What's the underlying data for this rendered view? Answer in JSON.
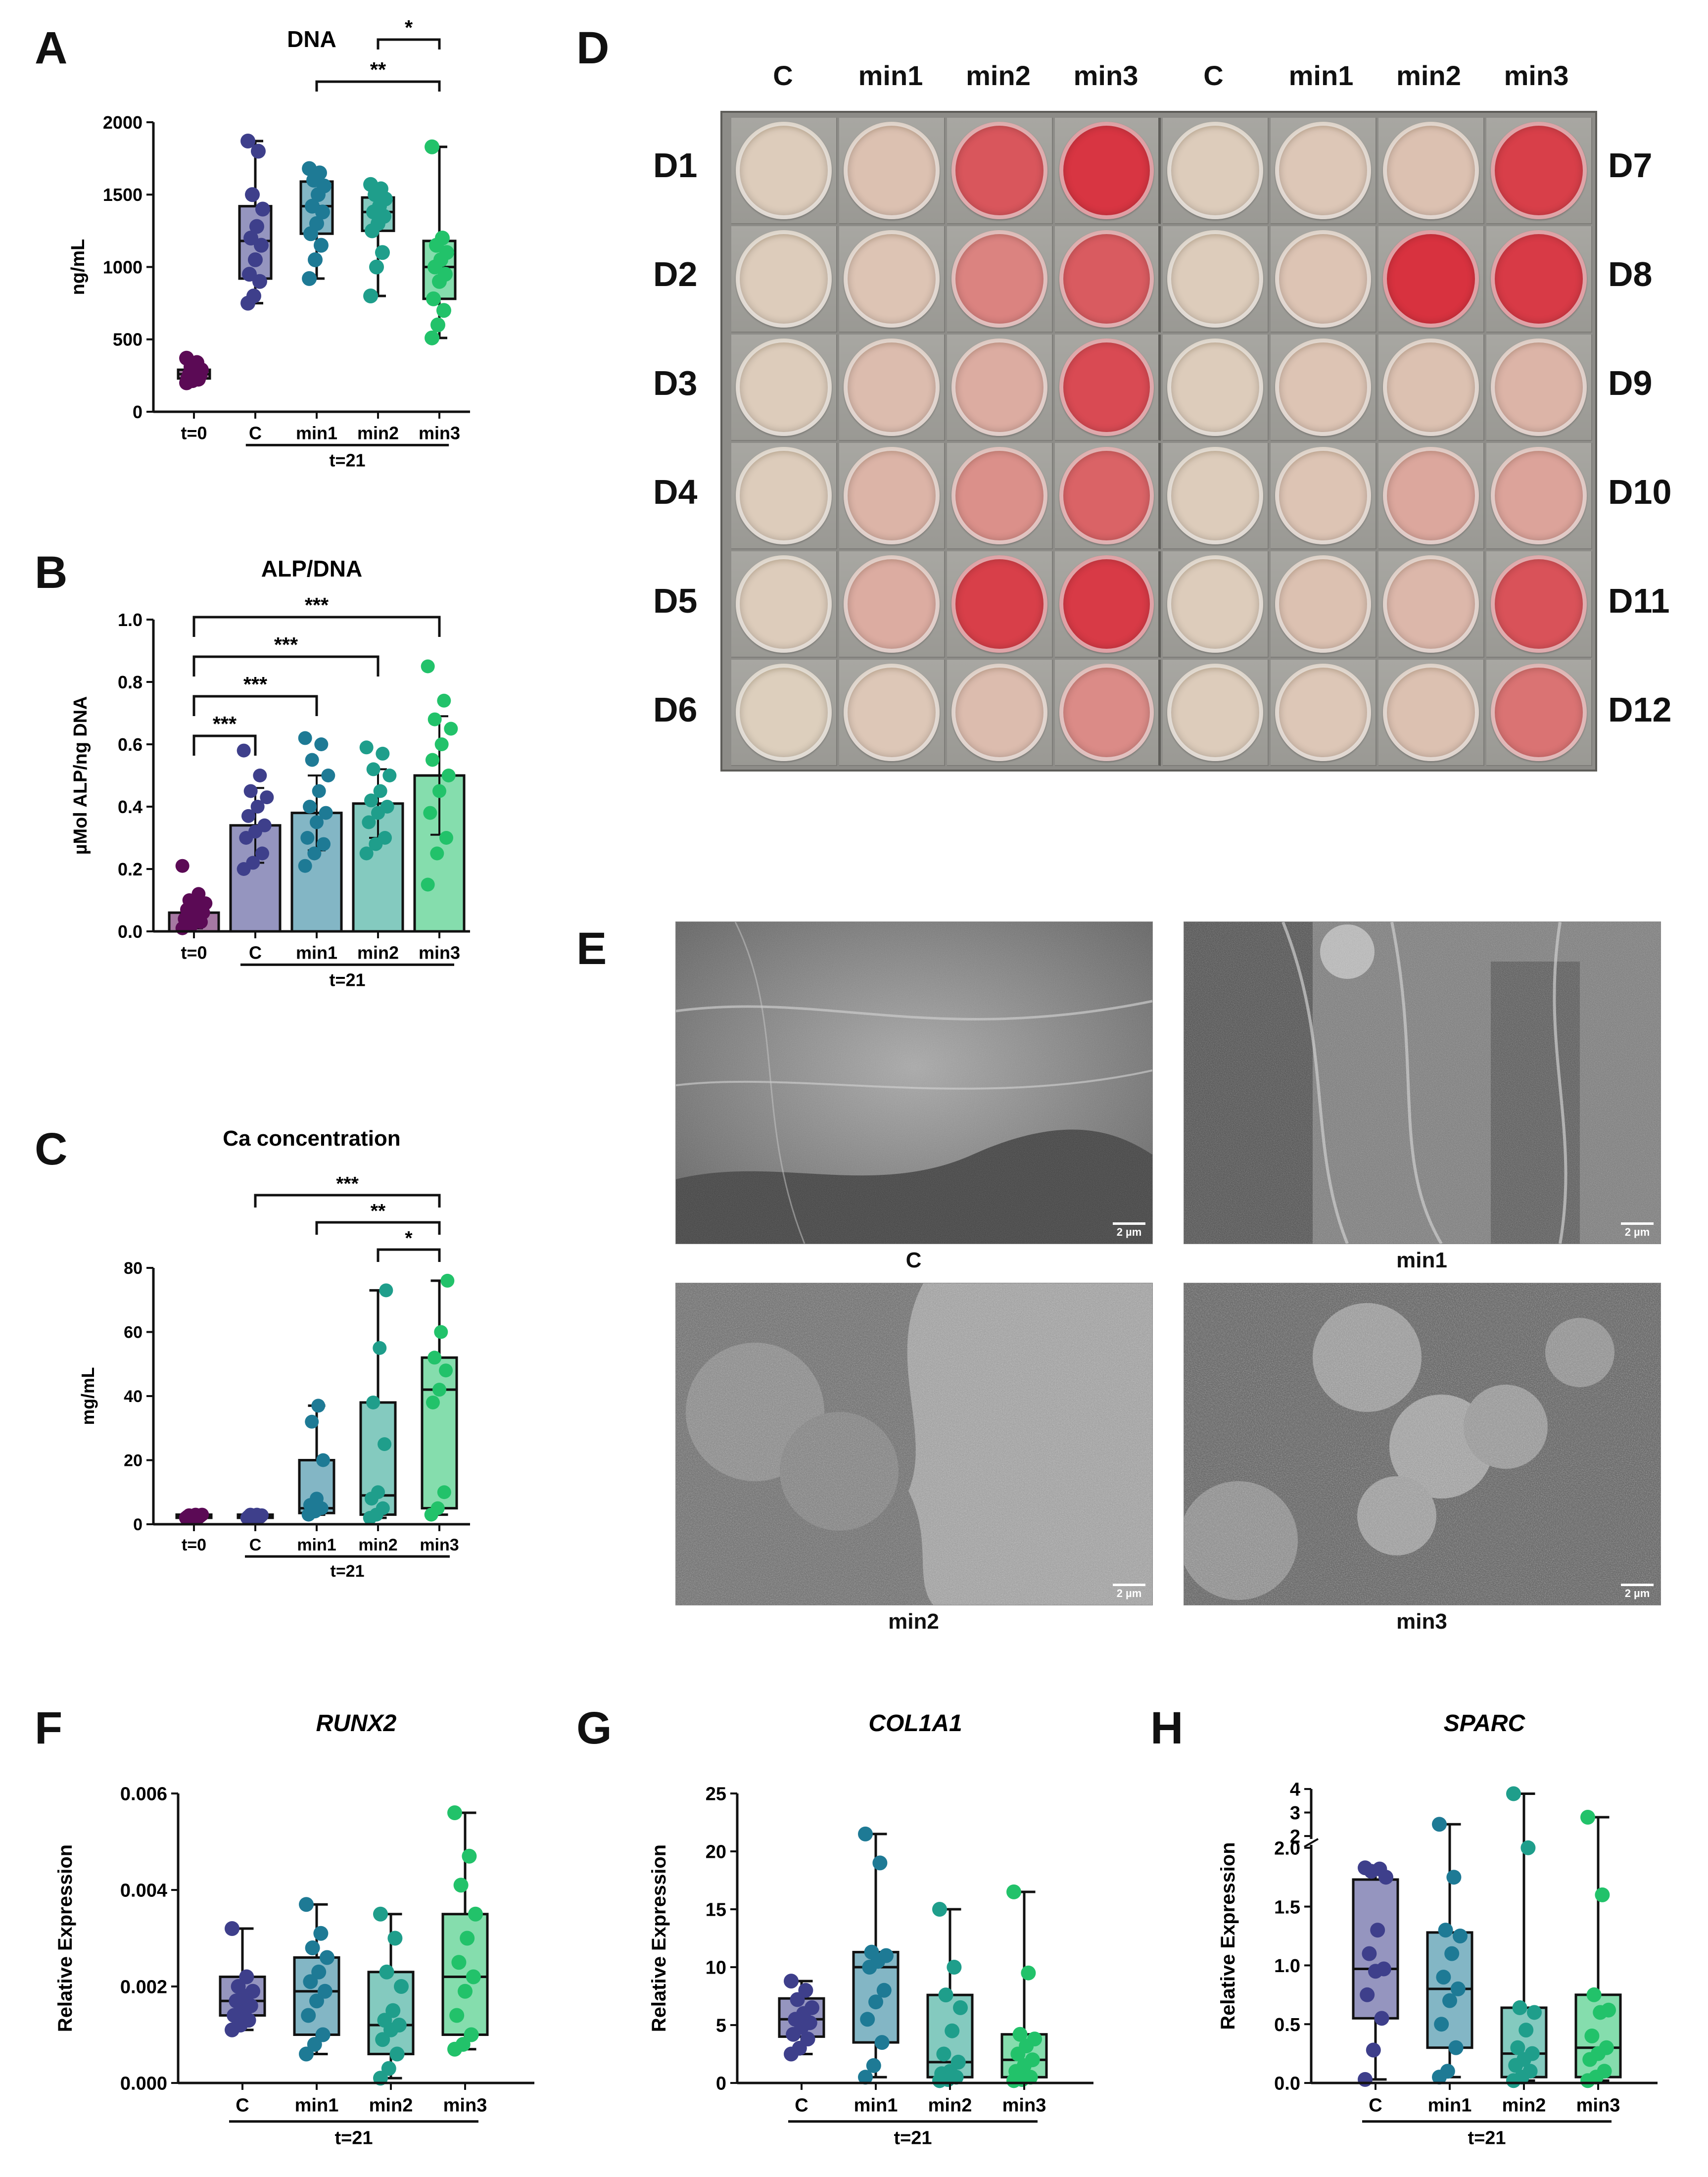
{
  "panel_letters": {
    "A": "A",
    "B": "B",
    "C": "C",
    "D": "D",
    "E": "E",
    "F": "F",
    "G": "G",
    "H": "H"
  },
  "colors": {
    "t0": "#5b0a55",
    "C": "#3e3f8b",
    "min1": "#1e7a95",
    "min2": "#1f9e8b",
    "min3": "#22c26a",
    "plate_white": "#ddd4c1",
    "plate_red": "#d8323f"
  },
  "plate": {
    "column_labels": [
      "C",
      "min1",
      "min2",
      "min3",
      "C",
      "min1",
      "min2",
      "min3"
    ],
    "left_labels": [
      "D1",
      "D2",
      "D3",
      "D4",
      "D5",
      "D6"
    ],
    "right_labels": [
      "D7",
      "D8",
      "D9",
      "D10",
      "D11",
      "D12"
    ],
    "well_stain_levels": [
      [
        0.05,
        0.12,
        0.78,
        0.98,
        0.05,
        0.08,
        0.12,
        0.92
      ],
      [
        0.05,
        0.1,
        0.5,
        0.75,
        0.05,
        0.1,
        1.0,
        0.95
      ],
      [
        0.05,
        0.15,
        0.25,
        0.85,
        0.05,
        0.1,
        0.12,
        0.2
      ],
      [
        0.05,
        0.2,
        0.42,
        0.7,
        0.05,
        0.1,
        0.28,
        0.3
      ],
      [
        0.05,
        0.25,
        0.92,
        0.95,
        0.05,
        0.12,
        0.18,
        0.8
      ],
      [
        0.03,
        0.08,
        0.15,
        0.45,
        0.05,
        0.08,
        0.12,
        0.6
      ]
    ]
  },
  "sem": {
    "images": [
      {
        "label": "C",
        "scale": "2 µm"
      },
      {
        "label": "min1",
        "scale": "2 µm"
      },
      {
        "label": "min2",
        "scale": "2 µm"
      },
      {
        "label": "min3",
        "scale": "2 µm"
      }
    ]
  },
  "chart_data": [
    {
      "id": "A",
      "type": "box",
      "title": "DNA",
      "ylabel": "ng/mL",
      "ylim": [
        0,
        2000
      ],
      "yticks": [
        "0",
        "500",
        "1000",
        "1500",
        "2000"
      ],
      "categories": [
        "t=0",
        "C",
        "min1",
        "min2",
        "min3"
      ],
      "group_label": "t=21",
      "series": [
        {
          "name": "t=0",
          "min": 200,
          "q1": 230,
          "median": 260,
          "q3": 290,
          "max": 370,
          "points": [
            200,
            215,
            225,
            235,
            245,
            250,
            260,
            270,
            290,
            310,
            340,
            370
          ]
        },
        {
          "name": "C",
          "min": 750,
          "q1": 920,
          "median": 1180,
          "q3": 1420,
          "max": 1870,
          "points": [
            750,
            800,
            900,
            950,
            1050,
            1150,
            1200,
            1280,
            1400,
            1500,
            1800,
            1870
          ]
        },
        {
          "name": "min1",
          "min": 920,
          "q1": 1230,
          "median": 1420,
          "q3": 1590,
          "max": 1680,
          "points": [
            920,
            1050,
            1150,
            1230,
            1300,
            1380,
            1420,
            1500,
            1560,
            1600,
            1650,
            1680
          ]
        },
        {
          "name": "min2",
          "min": 800,
          "q1": 1250,
          "median": 1380,
          "q3": 1480,
          "max": 1570,
          "points": [
            800,
            1000,
            1100,
            1250,
            1300,
            1350,
            1380,
            1420,
            1470,
            1500,
            1540,
            1570
          ]
        },
        {
          "name": "min3",
          "min": 510,
          "q1": 780,
          "median": 1000,
          "q3": 1180,
          "max": 1830,
          "points": [
            510,
            600,
            700,
            780,
            900,
            950,
            1000,
            1050,
            1100,
            1150,
            1200,
            1830
          ]
        }
      ],
      "significance": [
        {
          "from": "min1",
          "to": "min3",
          "label": "**"
        },
        {
          "from": "min2",
          "to": "min3",
          "label": "*"
        }
      ]
    },
    {
      "id": "B",
      "type": "bar",
      "title": "ALP/DNA",
      "ylabel": "µMol ALP/ng DNA",
      "ylim": [
        0,
        1.0
      ],
      "yticks": [
        "0.0",
        "0.2",
        "0.4",
        "0.6",
        "0.8",
        "1.0"
      ],
      "categories": [
        "t=0",
        "C",
        "min1",
        "min2",
        "min3"
      ],
      "group_label": "t=21",
      "series": [
        {
          "name": "t=0",
          "mean": 0.06,
          "sd": 0.05,
          "points": [
            0.01,
            0.02,
            0.03,
            0.04,
            0.05,
            0.06,
            0.07,
            0.08,
            0.09,
            0.1,
            0.12,
            0.21
          ]
        },
        {
          "name": "C",
          "mean": 0.34,
          "sd": 0.12,
          "points": [
            0.2,
            0.22,
            0.25,
            0.3,
            0.32,
            0.34,
            0.37,
            0.4,
            0.43,
            0.45,
            0.5,
            0.58
          ]
        },
        {
          "name": "min1",
          "mean": 0.38,
          "sd": 0.12,
          "points": [
            0.21,
            0.25,
            0.28,
            0.3,
            0.35,
            0.38,
            0.4,
            0.45,
            0.5,
            0.55,
            0.6,
            0.62
          ]
        },
        {
          "name": "min2",
          "mean": 0.41,
          "sd": 0.11,
          "points": [
            0.25,
            0.28,
            0.3,
            0.35,
            0.38,
            0.4,
            0.42,
            0.45,
            0.5,
            0.52,
            0.57,
            0.59
          ]
        },
        {
          "name": "min3",
          "mean": 0.5,
          "sd": 0.19,
          "points": [
            0.15,
            0.25,
            0.3,
            0.38,
            0.45,
            0.5,
            0.55,
            0.6,
            0.65,
            0.68,
            0.74,
            0.85
          ]
        }
      ],
      "significance": [
        {
          "from": "t=0",
          "to": "C",
          "label": "***"
        },
        {
          "from": "t=0",
          "to": "min1",
          "label": "***"
        },
        {
          "from": "t=0",
          "to": "min2",
          "label": "***"
        },
        {
          "from": "t=0",
          "to": "min3",
          "label": "***"
        }
      ]
    },
    {
      "id": "C",
      "type": "box",
      "title": "Ca concentration",
      "ylabel": "mg/mL",
      "ylim": [
        0,
        80
      ],
      "yticks": [
        "0",
        "20",
        "40",
        "60",
        "80"
      ],
      "categories": [
        "t=0",
        "C",
        "min1",
        "min2",
        "min3"
      ],
      "group_label": "t=21",
      "series": [
        {
          "name": "t=0",
          "min": 2,
          "q1": 2,
          "median": 2.5,
          "q3": 3,
          "max": 3,
          "points": [
            2,
            2,
            2.2,
            2.4,
            2.5,
            2.6,
            2.8,
            3,
            3
          ]
        },
        {
          "name": "C",
          "min": 2,
          "q1": 2,
          "median": 2.5,
          "q3": 3,
          "max": 3,
          "points": [
            2,
            2.1,
            2.3,
            2.5,
            2.6,
            2.8,
            3,
            3
          ]
        },
        {
          "name": "min1",
          "min": 3,
          "q1": 3.5,
          "median": 5,
          "q3": 20,
          "max": 37,
          "points": [
            3,
            4,
            5,
            6,
            8,
            20,
            32,
            37
          ]
        },
        {
          "name": "min2",
          "min": 2,
          "q1": 3,
          "median": 9,
          "q3": 38,
          "max": 73,
          "points": [
            2,
            3,
            5,
            8,
            10,
            25,
            38,
            55,
            73
          ]
        },
        {
          "name": "min3",
          "min": 3,
          "q1": 5,
          "median": 42,
          "q3": 52,
          "max": 76,
          "points": [
            3,
            5,
            10,
            38,
            42,
            48,
            52,
            60,
            76
          ]
        }
      ],
      "significance": [
        {
          "from": "C",
          "to": "min3",
          "label": "***"
        },
        {
          "from": "min1",
          "to": "min3",
          "label": "**"
        },
        {
          "from": "min2",
          "to": "min3",
          "label": "*"
        }
      ]
    },
    {
      "id": "F",
      "type": "box",
      "title": "RUNX2",
      "ylabel": "Relative Expression",
      "ylim": [
        0,
        0.006
      ],
      "yticks": [
        "0.000",
        "0.002",
        "0.004",
        "0.006"
      ],
      "categories": [
        "C",
        "min1",
        "min2",
        "min3"
      ],
      "group_label": "t=21",
      "series": [
        {
          "name": "C",
          "min": 0.0011,
          "q1": 0.0014,
          "median": 0.0017,
          "q3": 0.0022,
          "max": 0.0032,
          "points": [
            0.0011,
            0.0012,
            0.0013,
            0.0014,
            0.0015,
            0.0016,
            0.0017,
            0.0018,
            0.0019,
            0.002,
            0.0022,
            0.0032
          ]
        },
        {
          "name": "min1",
          "min": 0.0006,
          "q1": 0.001,
          "median": 0.0019,
          "q3": 0.0026,
          "max": 0.0037,
          "points": [
            0.0006,
            0.0008,
            0.001,
            0.0014,
            0.0017,
            0.0019,
            0.0021,
            0.0023,
            0.0026,
            0.0028,
            0.0031,
            0.0037
          ]
        },
        {
          "name": "min2",
          "min": 0.0001,
          "q1": 0.0006,
          "median": 0.0012,
          "q3": 0.0023,
          "max": 0.0035,
          "points": [
            0.0001,
            0.0003,
            0.0006,
            0.0009,
            0.0011,
            0.0012,
            0.0013,
            0.0015,
            0.002,
            0.0023,
            0.003,
            0.0035
          ]
        },
        {
          "name": "min3",
          "min": 0.0007,
          "q1": 0.001,
          "median": 0.0022,
          "q3": 0.0035,
          "max": 0.0056,
          "points": [
            0.0007,
            0.0008,
            0.001,
            0.0014,
            0.0019,
            0.0022,
            0.0025,
            0.003,
            0.0035,
            0.0041,
            0.0047,
            0.0056
          ]
        }
      ]
    },
    {
      "id": "G",
      "type": "box",
      "title": "COL1A1",
      "ylabel": "Relative Expression",
      "ylim": [
        0,
        25
      ],
      "yticks": [
        "0",
        "5",
        "10",
        "15",
        "20",
        "25"
      ],
      "categories": [
        "C",
        "min1",
        "min2",
        "min3"
      ],
      "group_label": "t=21",
      "series": [
        {
          "name": "C",
          "min": 2.5,
          "q1": 4,
          "median": 5.5,
          "q3": 7.3,
          "max": 8.8,
          "points": [
            2.5,
            3,
            3.8,
            4.2,
            4.8,
            5.2,
            5.5,
            6,
            6.5,
            7.2,
            8,
            8.8
          ]
        },
        {
          "name": "min1",
          "min": 0.5,
          "q1": 3.5,
          "median": 10,
          "q3": 11.3,
          "max": 21.5,
          "points": [
            0.5,
            1.5,
            3.5,
            5.5,
            7,
            8,
            10,
            10.5,
            11,
            11.3,
            19,
            21.5
          ]
        },
        {
          "name": "min2",
          "min": 0.2,
          "q1": 0.5,
          "median": 1.8,
          "q3": 7.6,
          "max": 15,
          "points": [
            0.2,
            0.3,
            0.5,
            0.8,
            1,
            1.8,
            2.5,
            4.5,
            6.5,
            7.6,
            10,
            15
          ]
        },
        {
          "name": "min3",
          "min": 0.2,
          "q1": 0.5,
          "median": 2,
          "q3": 4.2,
          "max": 16.5,
          "points": [
            0.2,
            0.3,
            0.5,
            1,
            1.5,
            2,
            2.5,
            3.2,
            3.8,
            4.2,
            9.5,
            16.5
          ]
        }
      ]
    },
    {
      "id": "H",
      "type": "box",
      "title": "SPARC",
      "ylabel": "Relative Expression",
      "ylim": [
        0,
        4
      ],
      "broken_axis": {
        "lower": [
          0,
          2
        ],
        "upper": [
          2,
          4
        ]
      },
      "yticks": [
        "0.0",
        "0.5",
        "1.0",
        "1.5",
        "2.0",
        "2",
        "3",
        "4"
      ],
      "categories": [
        "C",
        "min1",
        "min2",
        "min3"
      ],
      "group_label": "t=21",
      "series": [
        {
          "name": "C",
          "min": 0.03,
          "q1": 0.55,
          "median": 0.97,
          "q3": 1.73,
          "max": 1.83,
          "points": [
            0.03,
            0.28,
            0.55,
            0.75,
            0.95,
            0.97,
            1.1,
            1.3,
            1.75,
            1.8,
            1.82,
            1.83
          ]
        },
        {
          "name": "min1",
          "min": 0.05,
          "q1": 0.3,
          "median": 0.8,
          "q3": 1.28,
          "max": 2.5,
          "points": [
            0.05,
            0.1,
            0.3,
            0.5,
            0.7,
            0.8,
            0.9,
            1.1,
            1.25,
            1.3,
            1.75,
            2.5
          ]
        },
        {
          "name": "min2",
          "min": 0.02,
          "q1": 0.05,
          "median": 0.25,
          "q3": 0.64,
          "max": 3.8,
          "points": [
            0.02,
            0.05,
            0.1,
            0.15,
            0.2,
            0.25,
            0.3,
            0.45,
            0.6,
            0.64,
            2.0,
            3.8
          ]
        },
        {
          "name": "min3",
          "min": 0.02,
          "q1": 0.05,
          "median": 0.3,
          "q3": 0.75,
          "max": 2.8,
          "points": [
            0.02,
            0.05,
            0.1,
            0.2,
            0.25,
            0.3,
            0.4,
            0.6,
            0.62,
            0.75,
            1.6,
            2.8
          ]
        }
      ]
    }
  ]
}
